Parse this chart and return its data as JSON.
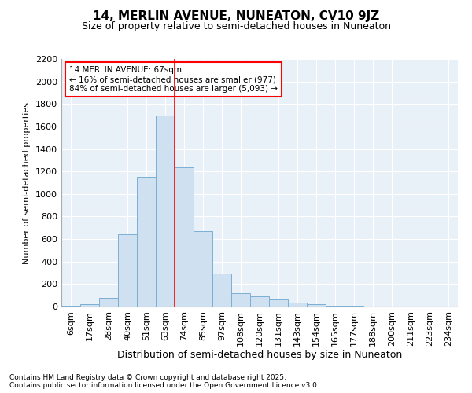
{
  "title1": "14, MERLIN AVENUE, NUNEATON, CV10 9JZ",
  "title2": "Size of property relative to semi-detached houses in Nuneaton",
  "xlabel": "Distribution of semi-detached houses by size in Nuneaton",
  "ylabel": "Number of semi-detached properties",
  "categories": [
    "6sqm",
    "17sqm",
    "28sqm",
    "40sqm",
    "51sqm",
    "63sqm",
    "74sqm",
    "85sqm",
    "97sqm",
    "108sqm",
    "120sqm",
    "131sqm",
    "143sqm",
    "154sqm",
    "165sqm",
    "177sqm",
    "188sqm",
    "200sqm",
    "211sqm",
    "223sqm",
    "234sqm"
  ],
  "values": [
    5,
    20,
    75,
    645,
    1150,
    1700,
    1235,
    670,
    295,
    120,
    90,
    60,
    35,
    20,
    10,
    5,
    2,
    1,
    0,
    0,
    0
  ],
  "bar_color": "#cfe0f0",
  "bar_edgecolor": "#7aafd4",
  "annotation_text_line1": "14 MERLIN AVENUE: 67sqm",
  "annotation_text_line2": "← 16% of semi-detached houses are smaller (977)",
  "annotation_text_line3": "84% of semi-detached houses are larger (5,093) →",
  "vline_x_index": 5,
  "ylim": [
    0,
    2200
  ],
  "yticks": [
    0,
    200,
    400,
    600,
    800,
    1000,
    1200,
    1400,
    1600,
    1800,
    2000,
    2200
  ],
  "footer_line1": "Contains HM Land Registry data © Crown copyright and database right 2025.",
  "footer_line2": "Contains public sector information licensed under the Open Government Licence v3.0.",
  "background_color": "#ffffff",
  "grid_color": "#c8d8e8",
  "title1_fontsize": 11,
  "title2_fontsize": 9,
  "xlabel_fontsize": 9,
  "ylabel_fontsize": 8,
  "tick_fontsize": 8,
  "footer_fontsize": 6.5
}
